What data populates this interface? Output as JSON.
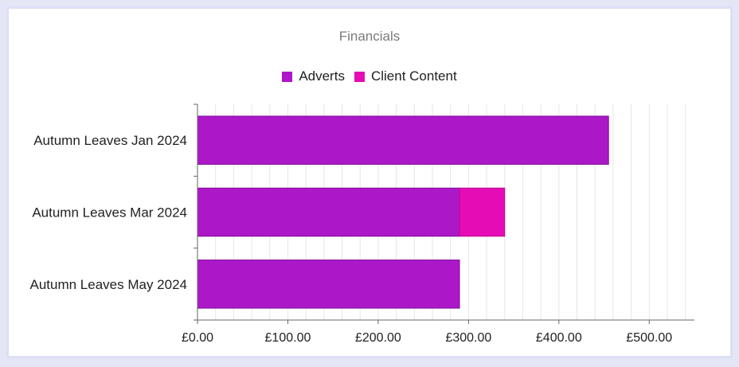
{
  "chart_data": {
    "type": "bar",
    "orientation": "horizontal",
    "stacked": true,
    "title": "Financials",
    "categories": [
      "Autumn Leaves Jan 2024",
      "Autumn Leaves Mar 2024",
      "Autumn Leaves May 2024"
    ],
    "series": [
      {
        "name": "Adverts",
        "color": "#ac18c8",
        "values": [
          455,
          290,
          290
        ]
      },
      {
        "name": "Client Content",
        "color": "#e60cb5",
        "values": [
          0,
          50,
          0
        ]
      }
    ],
    "xlim": [
      0,
      550
    ],
    "xticks": [
      0,
      100,
      200,
      300,
      400,
      500
    ],
    "xtick_labels": [
      "£0.00",
      "£100.00",
      "£200.00",
      "£300.00",
      "£400.00",
      "£500.00"
    ],
    "minor_grid_step": 20,
    "grid": true,
    "legend_position": "top"
  }
}
